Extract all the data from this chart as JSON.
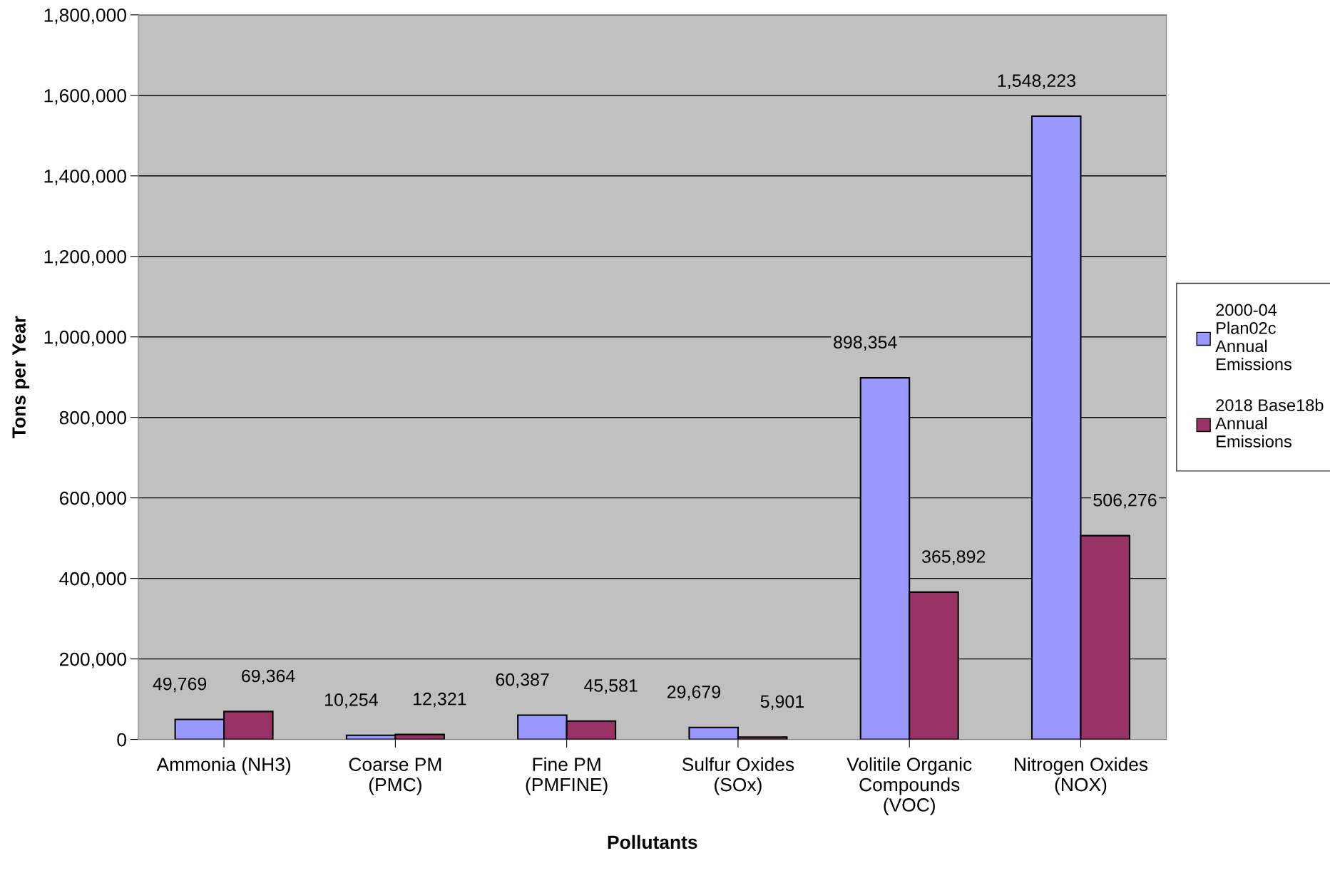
{
  "chart_data": {
    "type": "bar",
    "xlabel": "Pollutants",
    "ylabel": "Tons per Year",
    "categories": [
      "Ammonia (NH3)",
      "Coarse PM\n(PMC)",
      "Fine PM\n(PMFINE)",
      "Sulfur Oxides\n(SOx)",
      "Volitile Organic\nCompounds\n(VOC)",
      "Nitrogen Oxides\n(NOX)"
    ],
    "series": [
      {
        "name": "2000-04 Plan02c Annual Emissions",
        "color": "#9999ff",
        "values": [
          49769,
          10254,
          60387,
          29679,
          898354,
          1548223
        ],
        "value_labels": [
          "49,769",
          "10,254",
          "60,387",
          "29,679",
          "898,354",
          "1,548,223"
        ]
      },
      {
        "name": "2018 Base18b Annual Emissions",
        "color": "#993366",
        "values": [
          69364,
          12321,
          45581,
          5901,
          365892,
          506276
        ],
        "value_labels": [
          "69,364",
          "12,321",
          "45,581",
          "5,901",
          "365,892",
          "506,276"
        ]
      }
    ],
    "ylim": [
      0,
      1800000
    ],
    "yticks": [
      0,
      {
        "value": 200000,
        "label": "200,000"
      },
      {
        "value": 400000,
        "label": "400,000"
      },
      {
        "value": 600000,
        "label": "600,000"
      },
      {
        "value": 800000,
        "label": "800,000"
      },
      {
        "value": 1000000,
        "label": "1,000,000"
      },
      {
        "value": 1200000,
        "label": "1,200,000"
      },
      {
        "value": 1400000,
        "label": "1,400,000"
      },
      {
        "value": 1600000,
        "label": "1,600,000"
      },
      {
        "value": 1800000,
        "label": "1,800,000"
      }
    ],
    "grid": "y",
    "legend": "right"
  }
}
